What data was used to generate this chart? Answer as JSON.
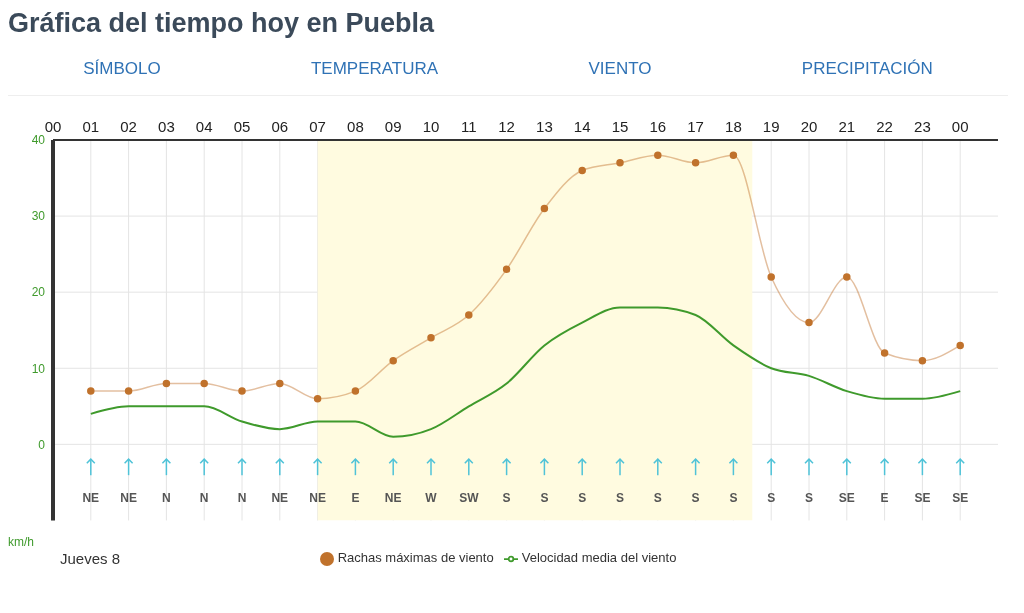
{
  "chart_data": {
    "type": "line",
    "title": "Gráfica del tiempo hoy en Puebla",
    "ylabel": "km/h",
    "x": [
      1,
      2,
      3,
      4,
      5,
      6,
      7,
      8,
      9,
      10,
      11,
      12,
      13,
      14,
      15,
      16,
      17,
      18,
      19,
      20,
      21,
      22,
      23,
      24
    ],
    "series": [
      {
        "name": "Rachas máximas de viento",
        "color": "#c0722c",
        "marker": "circle",
        "values": [
          7,
          7,
          8,
          8,
          7,
          8,
          6,
          7,
          11,
          14,
          17,
          23,
          31,
          36,
          37,
          38,
          37,
          38,
          22,
          16,
          22,
          12,
          11,
          13
        ]
      },
      {
        "name": "Velocidad media del viento",
        "color": "#3f9a2c",
        "marker": "none",
        "values": [
          4,
          5,
          5,
          5,
          3,
          2,
          3,
          3,
          1,
          2,
          5,
          8,
          13,
          16,
          18,
          18,
          17,
          13,
          10,
          9,
          7,
          6,
          6,
          7
        ]
      }
    ],
    "xlim": [
      0,
      25
    ],
    "xticks": [
      {
        "value": 0,
        "label": "00"
      },
      {
        "value": 1,
        "label": "01"
      },
      {
        "value": 2,
        "label": "02"
      },
      {
        "value": 3,
        "label": "03"
      },
      {
        "value": 4,
        "label": "04"
      },
      {
        "value": 5,
        "label": "05"
      },
      {
        "value": 6,
        "label": "06"
      },
      {
        "value": 7,
        "label": "07"
      },
      {
        "value": 8,
        "label": "08"
      },
      {
        "value": 9,
        "label": "09"
      },
      {
        "value": 10,
        "label": "10"
      },
      {
        "value": 11,
        "label": "11"
      },
      {
        "value": 12,
        "label": "12"
      },
      {
        "value": 13,
        "label": "13"
      },
      {
        "value": 14,
        "label": "14"
      },
      {
        "value": 15,
        "label": "15"
      },
      {
        "value": 16,
        "label": "16"
      },
      {
        "value": 17,
        "label": "17"
      },
      {
        "value": 18,
        "label": "18"
      },
      {
        "value": 19,
        "label": "19"
      },
      {
        "value": 20,
        "label": "20"
      },
      {
        "value": 21,
        "label": "21"
      },
      {
        "value": 22,
        "label": "22"
      },
      {
        "value": 23,
        "label": "23"
      },
      {
        "value": 24,
        "label": "00"
      }
    ],
    "ylim": [
      -10,
      40
    ],
    "yticks": [
      0,
      10,
      20,
      30,
      40
    ],
    "bands": [
      {
        "axis": "x",
        "from": 7,
        "to": 18.5,
        "color": "#fffbe0"
      }
    ],
    "grid": true,
    "legend": "bottom",
    "annotations": [
      "NE",
      "NE",
      "N",
      "N",
      "N",
      "NE",
      "NE",
      "E",
      "NE",
      "W",
      "SW",
      "S",
      "S",
      "S",
      "S",
      "S",
      "S",
      "S",
      "S",
      "S",
      "SE",
      "E",
      "SE",
      "SE",
      "SÍMBOLO",
      "TEMPERATURA",
      "VIENTO",
      "PRECIPITACIÓN",
      "Jueves 8"
    ]
  }
}
